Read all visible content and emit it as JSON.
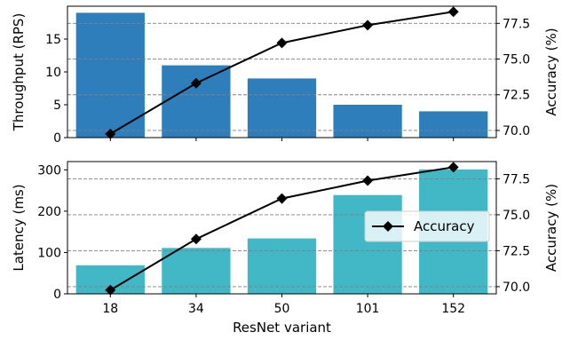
{
  "chart_data": [
    {
      "type": "bar",
      "categories": [
        "18",
        "34",
        "50",
        "101",
        "152"
      ],
      "series": [
        {
          "values": [
            19,
            11,
            9,
            5,
            4
          ],
          "color": "#2e7ebc",
          "axis": "left"
        },
        {
          "name": "Accuracy",
          "type": "line",
          "marker": "diamond",
          "values": [
            69.76,
            73.31,
            76.13,
            77.37,
            78.31
          ],
          "color": "#000000",
          "axis": "right"
        }
      ],
      "ylabel": "Throughput (RPS)",
      "ylabel_right": "Accuracy (%)",
      "ylim": [
        0,
        20
      ],
      "yticks": [
        0,
        5,
        10,
        15
      ],
      "ylim_right": [
        69.5,
        78.7
      ],
      "yticks_right": [
        "70.0",
        "72.5",
        "75.0",
        "77.5"
      ],
      "grid": "horizontal dashed"
    },
    {
      "type": "bar",
      "categories": [
        "18",
        "34",
        "50",
        "101",
        "152"
      ],
      "series": [
        {
          "values": [
            69,
            111,
            134,
            239,
            301
          ],
          "color": "#42b8c6",
          "axis": "left"
        },
        {
          "name": "Accuracy",
          "type": "line",
          "marker": "diamond",
          "values": [
            69.76,
            73.31,
            76.13,
            77.37,
            78.31
          ],
          "color": "#000000",
          "axis": "right"
        }
      ],
      "xlabel": "ResNet variant",
      "ylabel": "Latency (ms)",
      "ylabel_right": "Accuracy (%)",
      "ylim": [
        0,
        320
      ],
      "yticks": [
        0,
        100,
        200,
        300
      ],
      "ylim_right": [
        69.5,
        78.7
      ],
      "yticks_right": [
        "70.0",
        "72.5",
        "75.0",
        "77.5"
      ],
      "grid": "horizontal dashed",
      "legend": {
        "position": "right",
        "entries": [
          "Accuracy"
        ]
      }
    }
  ]
}
